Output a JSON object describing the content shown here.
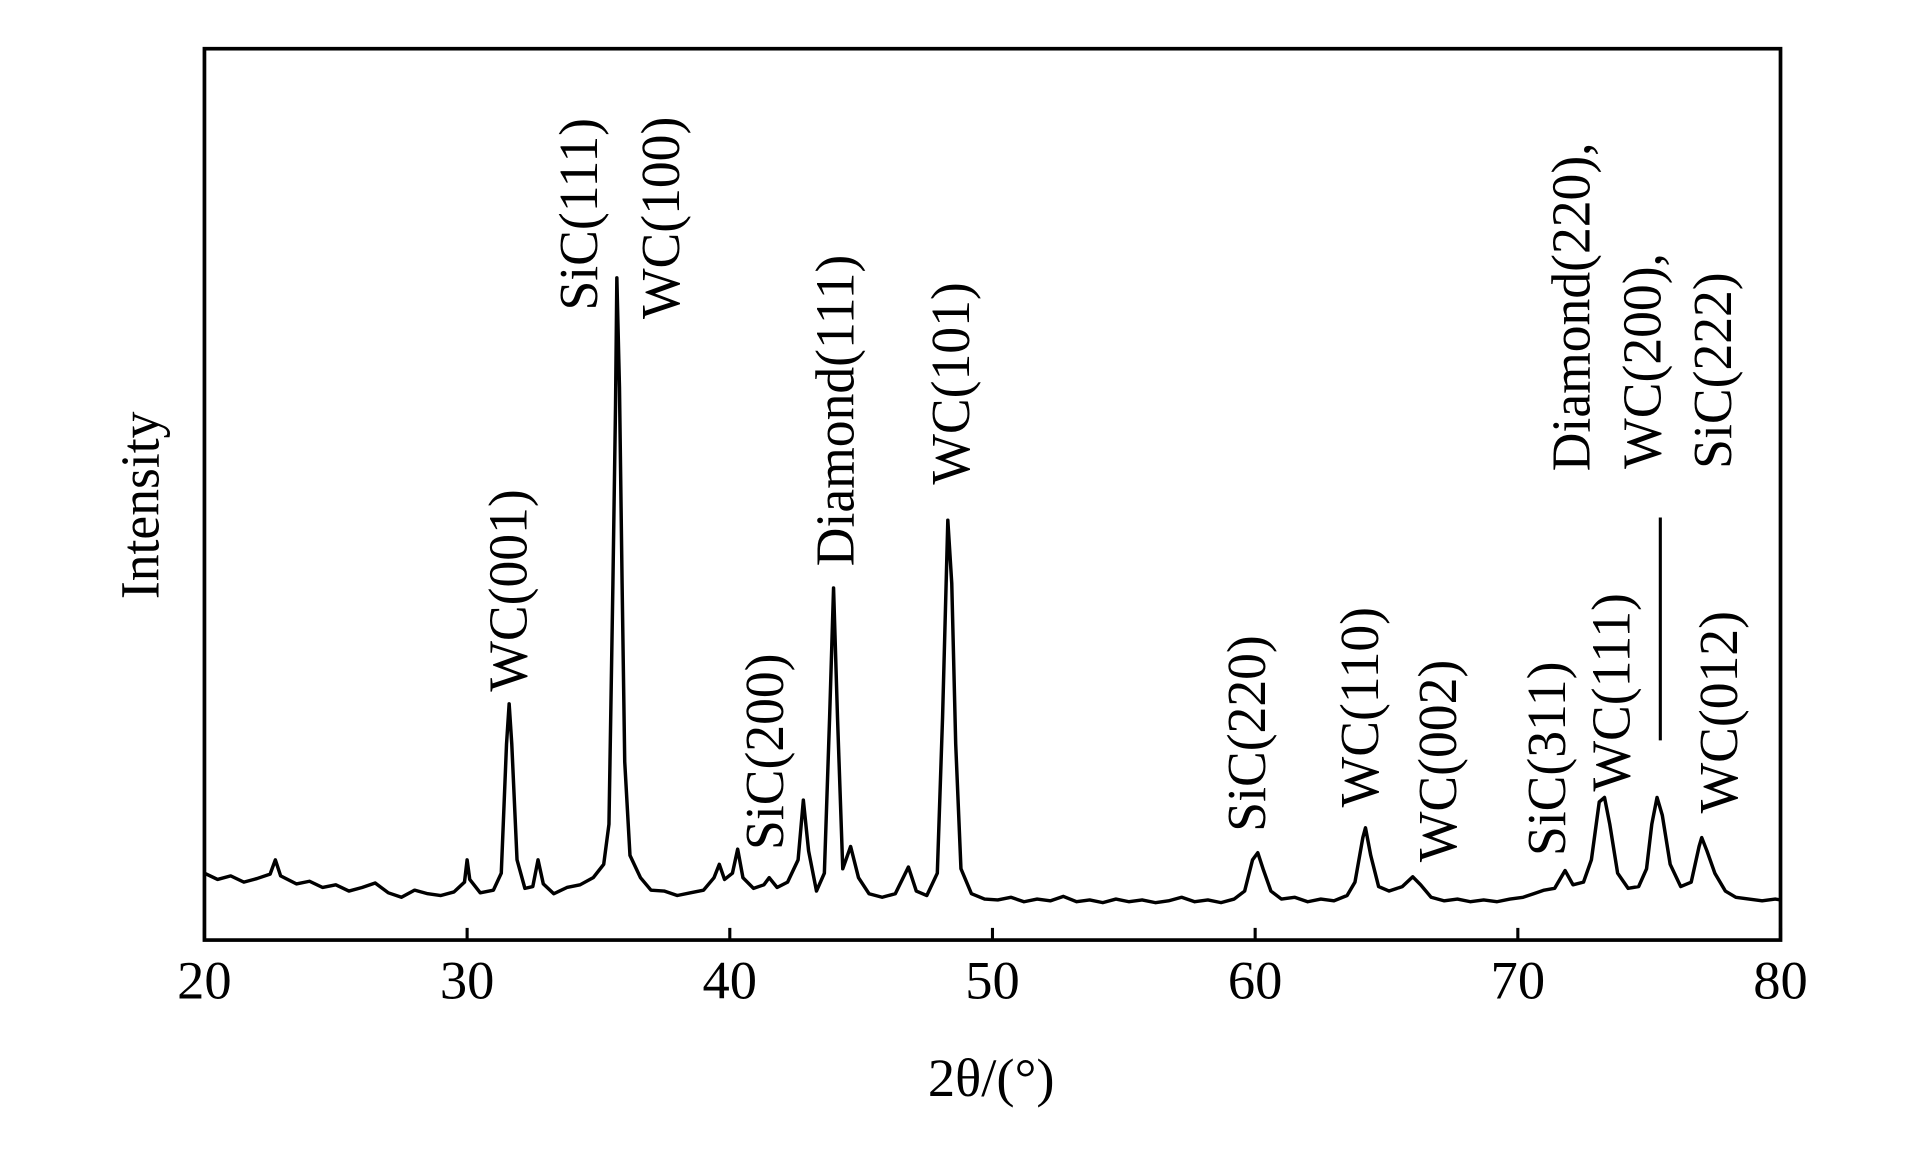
{
  "chart_data": {
    "type": "line",
    "xlabel": "2θ/(°)",
    "ylabel": "Intensity",
    "color": "#000000",
    "xlim": [
      20,
      80
    ],
    "xticks": [
      20,
      30,
      40,
      50,
      60,
      70,
      80
    ],
    "ylim": [
      0,
      100
    ],
    "annotations": [
      "WC(001)",
      "SiC(111)",
      "WC(100)",
      "SiC(200)",
      "Diamond(111)",
      "WC(101)",
      "SiC(220)",
      "WC(110)",
      "WC(002)",
      "SiC(311)",
      "WC(111)",
      "Diamond(220),",
      "WC(200),",
      "SiC(222)",
      "WC(012)"
    ],
    "x": [
      20,
      20.5,
      21,
      21.5,
      22,
      22.5,
      22.7,
      22.9,
      23.5,
      24,
      24.5,
      25,
      25.5,
      26,
      26.5,
      27,
      27.5,
      28,
      28.5,
      29,
      29.5,
      29.9,
      30.0,
      30.1,
      30.5,
      31.0,
      31.3,
      31.5,
      31.6,
      31.7,
      31.9,
      32.2,
      32.5,
      32.7,
      32.9,
      33.3,
      33.8,
      34.3,
      34.8,
      35.2,
      35.4,
      35.55,
      35.65,
      35.7,
      35.8,
      35.9,
      36.0,
      36.2,
      36.6,
      37.0,
      37.5,
      38.0,
      38.5,
      39.0,
      39.4,
      39.6,
      39.8,
      40.1,
      40.3,
      40.5,
      40.9,
      41.3,
      41.5,
      41.8,
      42.2,
      42.6,
      42.8,
      43.0,
      43.3,
      43.6,
      43.8,
      43.95,
      44.1,
      44.3,
      44.6,
      44.9,
      45.3,
      45.8,
      46.3,
      46.8,
      47.1,
      47.5,
      47.9,
      48.1,
      48.3,
      48.45,
      48.6,
      48.8,
      49.2,
      49.7,
      50.2,
      50.7,
      51.2,
      51.7,
      52.2,
      52.7,
      53.2,
      53.7,
      54.2,
      54.7,
      55.2,
      55.7,
      56.2,
      56.7,
      57.2,
      57.7,
      58.2,
      58.7,
      59.2,
      59.6,
      59.9,
      60.1,
      60.3,
      60.6,
      61.0,
      61.5,
      62.0,
      62.5,
      63.0,
      63.5,
      63.8,
      64.1,
      64.2,
      64.4,
      64.7,
      65.1,
      65.6,
      66.0,
      66.3,
      66.7,
      67.2,
      67.7,
      68.2,
      68.7,
      69.2,
      69.7,
      70.2,
      70.6,
      71.0,
      71.4,
      71.8,
      72.1,
      72.5,
      72.8,
      73.1,
      73.3,
      73.5,
      73.8,
      74.2,
      74.6,
      74.9,
      75.1,
      75.3,
      75.5,
      75.8,
      76.2,
      76.6,
      76.9,
      77.0,
      77.2,
      77.5,
      77.9,
      78.3,
      78.8,
      79.3,
      79.8,
      80
    ],
    "values": [
      7.5,
      6.8,
      7.2,
      6.5,
      6.9,
      7.4,
      9.0,
      7.2,
      6.3,
      6.6,
      5.9,
      6.2,
      5.5,
      5.9,
      6.4,
      5.3,
      4.8,
      5.6,
      5.2,
      5.0,
      5.4,
      6.5,
      9.0,
      6.8,
      5.3,
      5.6,
      7.5,
      22,
      26.5,
      22,
      9,
      5.8,
      6.0,
      9.0,
      6.3,
      5.2,
      5.9,
      6.2,
      7.0,
      8.5,
      13,
      40,
      60,
      74.3,
      62,
      40,
      20,
      9.5,
      7.0,
      5.6,
      5.5,
      5.0,
      5.3,
      5.6,
      7.0,
      8.5,
      6.8,
      7.5,
      10.2,
      7.0,
      5.8,
      6.2,
      7.0,
      5.9,
      6.5,
      9.0,
      15.7,
      10,
      5.5,
      7.5,
      25,
      39.5,
      25,
      8,
      10.5,
      7.0,
      5.2,
      4.8,
      5.2,
      8.2,
      5.5,
      5.0,
      7.5,
      25,
      47.1,
      40,
      22,
      8,
      5.2,
      4.6,
      4.5,
      4.8,
      4.3,
      4.6,
      4.4,
      4.9,
      4.3,
      4.5,
      4.2,
      4.6,
      4.3,
      4.5,
      4.2,
      4.4,
      4.8,
      4.3,
      4.5,
      4.2,
      4.6,
      5.5,
      9.0,
      9.8,
      8.0,
      5.5,
      4.6,
      4.8,
      4.3,
      4.6,
      4.4,
      5.0,
      6.5,
      11.5,
      12.6,
      9.5,
      6.0,
      5.5,
      6.0,
      7.1,
      6.2,
      4.8,
      4.4,
      4.6,
      4.3,
      4.5,
      4.3,
      4.6,
      4.8,
      5.2,
      5.6,
      5.8,
      7.8,
      6.2,
      6.5,
      9,
      15.5,
      16.0,
      13,
      7.5,
      5.8,
      6.0,
      8.0,
      13,
      16.0,
      14,
      8.5,
      6.0,
      6.5,
      10.5,
      11.5,
      10,
      7.5,
      5.5,
      4.8,
      4.6,
      4.4,
      4.6,
      4.5
    ]
  }
}
